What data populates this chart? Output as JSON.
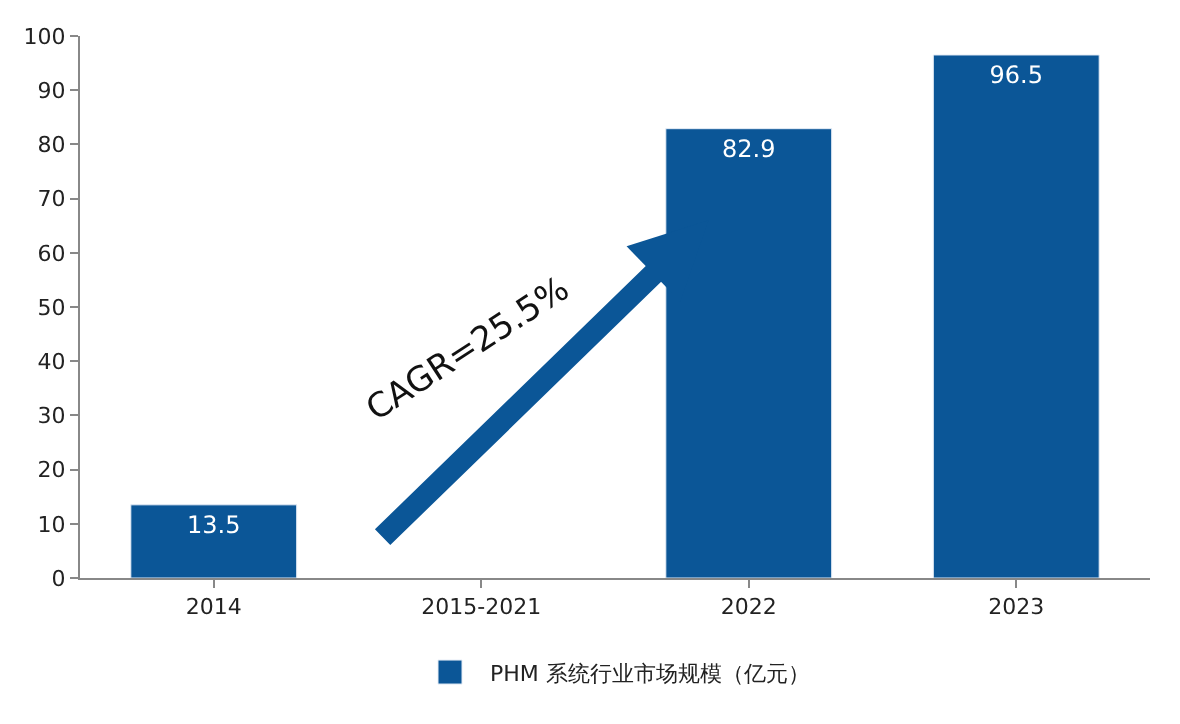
{
  "chart_data": {
    "type": "bar",
    "categories": [
      "2014",
      "2015-2021",
      "2022",
      "2023"
    ],
    "series": [
      {
        "name": "PHM 系统行业市场规模（亿元）",
        "color": "#0b5697",
        "values": [
          13.5,
          null,
          82.9,
          96.5
        ]
      }
    ],
    "ylim": [
      0,
      100
    ],
    "yticks": [
      0,
      10,
      20,
      30,
      40,
      50,
      60,
      70,
      80,
      90,
      100
    ],
    "data_labels": true,
    "legend": "bottom",
    "annotations": [
      "CAGR=25.5%"
    ]
  }
}
